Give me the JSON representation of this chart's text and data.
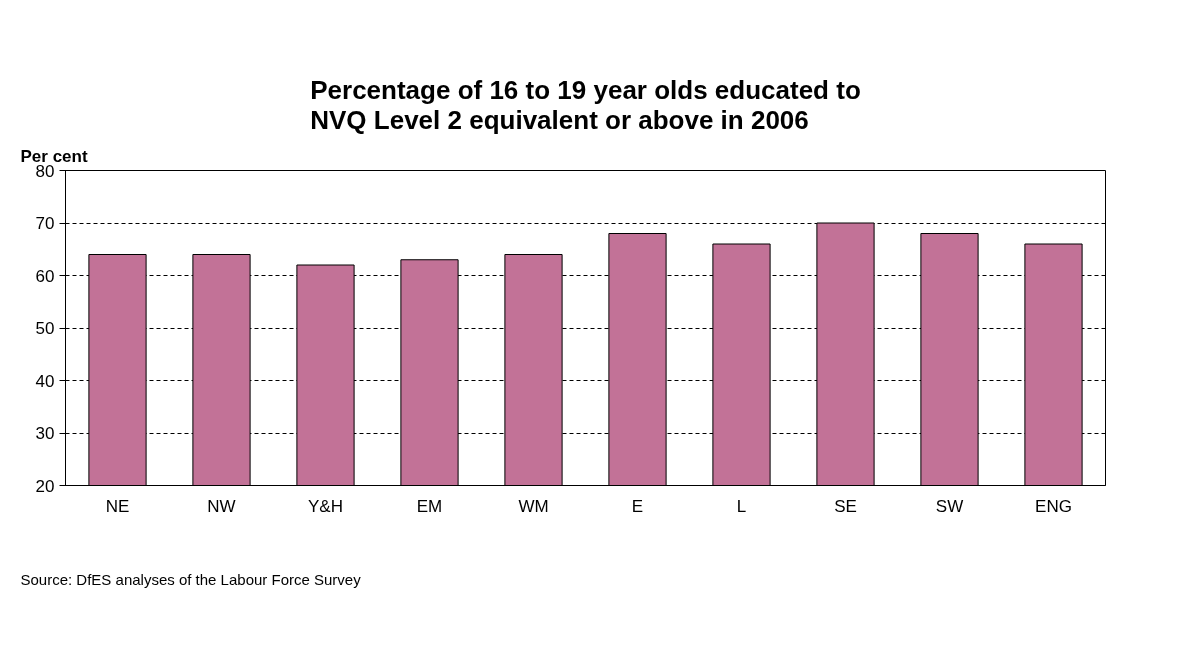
{
  "chart_data": {
    "type": "bar",
    "title": "Percentage of 16 to 19 year olds educated to\nNVQ Level 2 equivalent or above in 2006",
    "ylabel": "Per cent",
    "categories": [
      "NE",
      "NW",
      "Y&H",
      "EM",
      "WM",
      "E",
      "L",
      "SE",
      "SW",
      "ENG"
    ],
    "values": [
      64,
      64,
      62,
      63,
      64,
      68,
      66,
      70,
      68,
      66
    ],
    "color": "#c27297",
    "ylim": [
      20,
      80
    ],
    "yticks": [
      20,
      30,
      40,
      50,
      60,
      70,
      80
    ],
    "grid": "y",
    "annotations": [
      "Source: DfES analyses of the Labour Force Survey"
    ]
  }
}
